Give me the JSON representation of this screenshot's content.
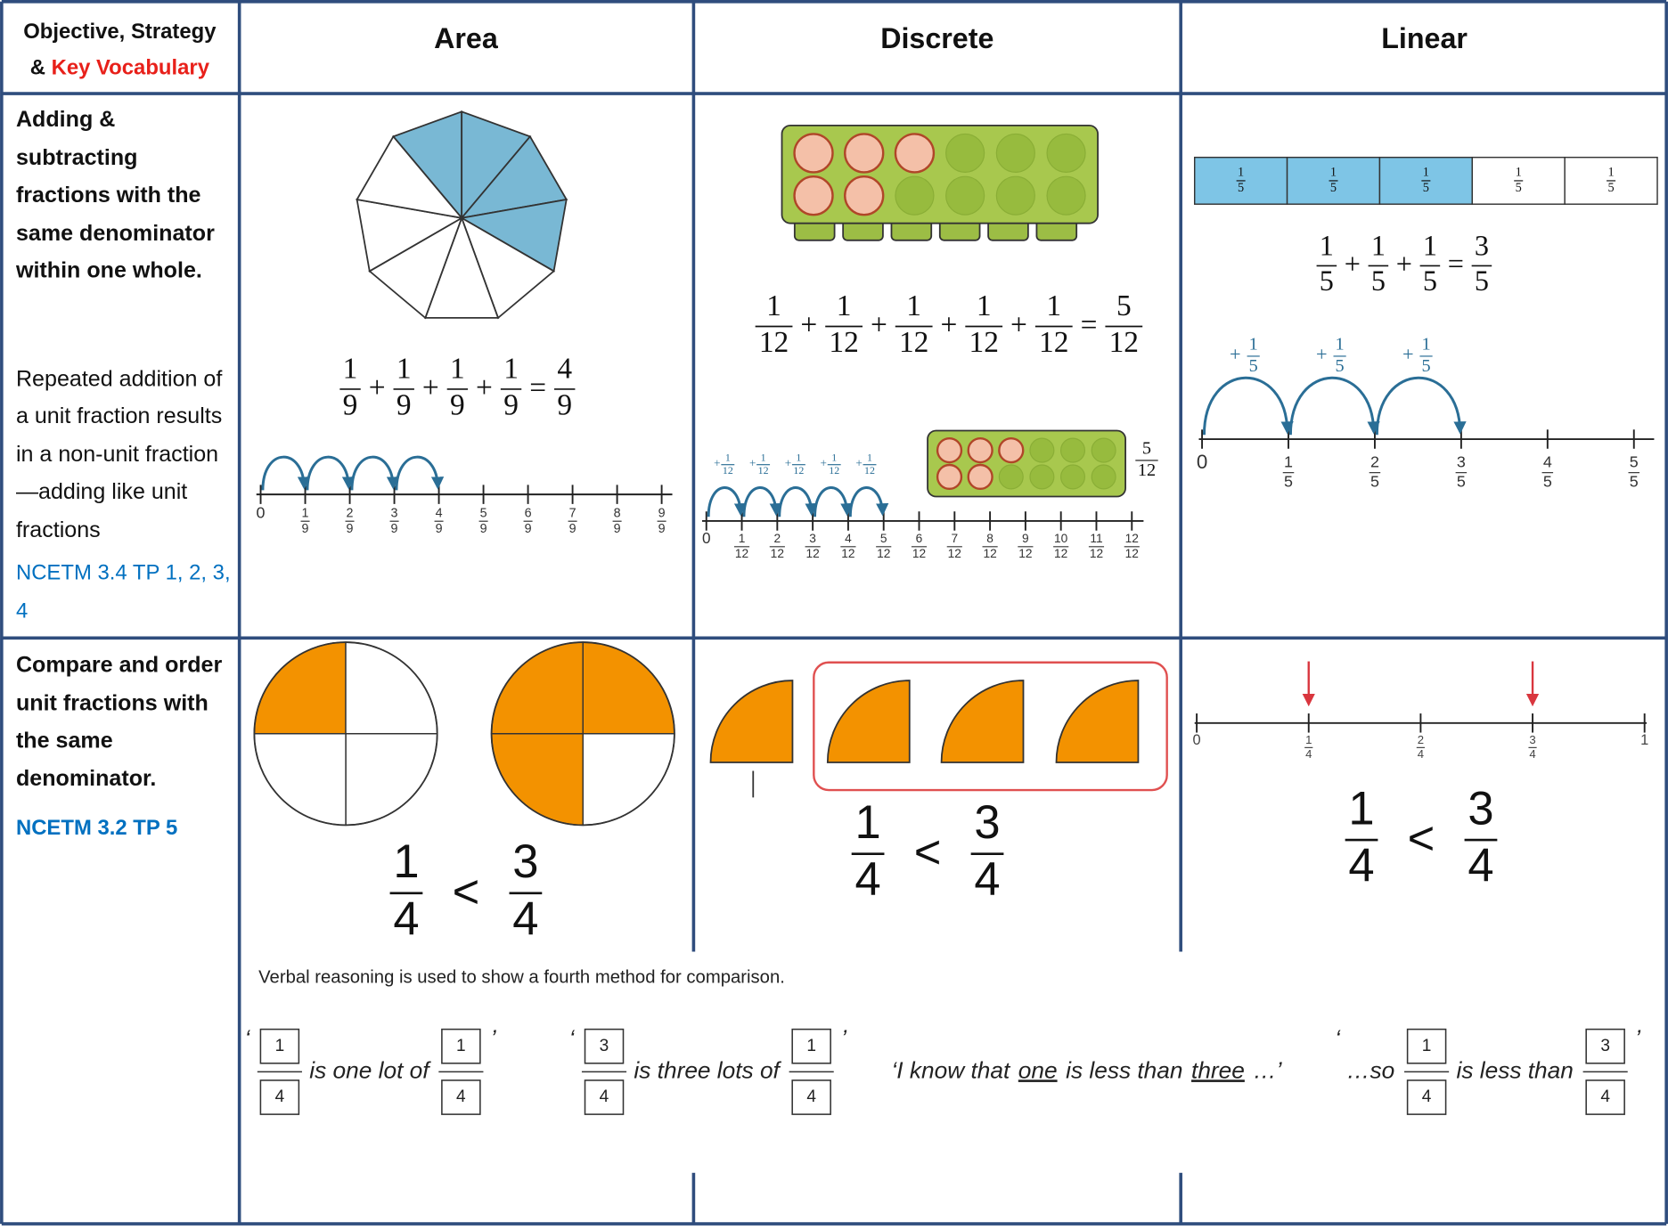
{
  "header": {
    "objective": "Objective, Strategy",
    "amp": "&",
    "vocabulary": "Key Vocabulary",
    "columns": [
      "Area",
      "Discrete",
      "Linear"
    ]
  },
  "rows": [
    {
      "objective": "Adding & subtracting fractions with the same denominator within one whole.",
      "description": "Repeated addition of a unit fraction results in a non-unit fraction—adding like unit fractions",
      "reference": "NCETM 3.4 TP 1, 2, 3, 4",
      "area": {
        "equation": {
          "terms": [
            [
              1,
              9
            ],
            [
              1,
              9
            ],
            [
              1,
              9
            ],
            [
              1,
              9
            ]
          ],
          "op": "+",
          "eq": "=",
          "result": [
            4,
            9
          ]
        },
        "number_line": [
          0,
          [
            1,
            9
          ],
          [
            2,
            9
          ],
          [
            3,
            9
          ],
          [
            4,
            9
          ],
          [
            5,
            9
          ],
          [
            6,
            9
          ],
          [
            7,
            9
          ],
          [
            8,
            9
          ],
          [
            9,
            9
          ]
        ]
      },
      "discrete": {
        "equation": {
          "terms": [
            [
              1,
              12
            ],
            [
              1,
              12
            ],
            [
              1,
              12
            ],
            [
              1,
              12
            ],
            [
              1,
              12
            ]
          ],
          "op": "+",
          "eq": "=",
          "result": [
            5,
            12
          ]
        },
        "jump_label": {
          "op": "+",
          "fraction": [
            1,
            12
          ]
        },
        "number_line": [
          0,
          [
            1,
            12
          ],
          [
            2,
            12
          ],
          [
            3,
            12
          ],
          [
            4,
            12
          ],
          [
            5,
            12
          ],
          [
            6,
            12
          ],
          [
            7,
            12
          ],
          [
            8,
            12
          ],
          [
            9,
            12
          ],
          [
            10,
            12
          ],
          [
            11,
            12
          ],
          [
            12,
            12
          ]
        ],
        "box_label": [
          5,
          12
        ]
      },
      "linear": {
        "bar_labels": [
          [
            1,
            5
          ],
          [
            1,
            5
          ],
          [
            1,
            5
          ],
          [
            1,
            5
          ],
          [
            1,
            5
          ]
        ],
        "equation": {
          "terms": [
            [
              1,
              5
            ],
            [
              1,
              5
            ],
            [
              1,
              5
            ]
          ],
          "op": "+",
          "eq": "=",
          "result": [
            3,
            5
          ]
        },
        "jump_label": {
          "op": "+",
          "fraction": [
            1,
            5
          ]
        },
        "number_line": [
          0,
          [
            1,
            5
          ],
          [
            2,
            5
          ],
          [
            3,
            5
          ],
          [
            4,
            5
          ],
          [
            5,
            5
          ]
        ]
      }
    },
    {
      "objective": "Compare and order unit fractions with the same denominator.",
      "reference": "NCETM 3.2 TP 5",
      "area": {
        "comparison": {
          "left": [
            1,
            4
          ],
          "op": "<",
          "right": [
            3,
            4
          ]
        }
      },
      "discrete": {
        "comparison": {
          "left": [
            1,
            4
          ],
          "op": "<",
          "right": [
            3,
            4
          ]
        }
      },
      "linear": {
        "number_line": [
          0,
          [
            1,
            4
          ],
          [
            2,
            4
          ],
          [
            3,
            4
          ],
          1
        ],
        "comparison": {
          "left": [
            1,
            4
          ],
          "op": "<",
          "right": [
            3,
            4
          ]
        }
      },
      "verbal": {
        "intro": "Verbal reasoning is used to show a fourth method for comparison.",
        "statements": [
          [
            "‘",
            [
              1,
              4
            ],
            "is one lot of",
            [
              1,
              4
            ],
            "’"
          ],
          [
            "‘",
            [
              3,
              4
            ],
            "is three lots of",
            [
              1,
              4
            ],
            "’"
          ],
          [
            "‘I know that",
            {
              "underline": "one"
            },
            "is less than",
            {
              "underline": "three"
            },
            "…’"
          ],
          [
            "‘",
            "…so",
            [
              1,
              4
            ],
            "is less than",
            [
              3,
              4
            ],
            "’"
          ]
        ]
      }
    }
  ]
}
